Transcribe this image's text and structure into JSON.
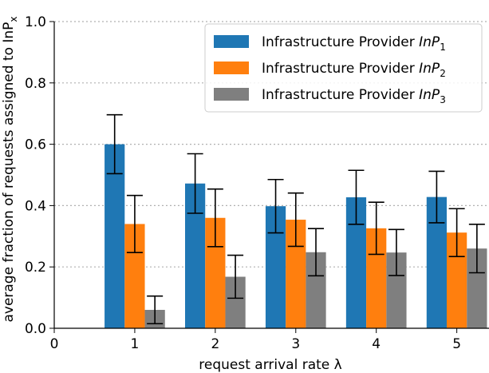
{
  "chart_data": {
    "type": "bar",
    "xlabel": "request arrival rate λ",
    "ylabel": "average fraction of requests assigned to InP",
    "ylabel_sub": "x",
    "categories": [
      "1",
      "2",
      "3",
      "4",
      "5"
    ],
    "x": [
      1,
      2,
      3,
      4,
      5
    ],
    "x_ticks": [
      "0",
      "1",
      "2",
      "3",
      "4",
      "5"
    ],
    "y_ticks": [
      "0.0",
      "0.2",
      "0.4",
      "0.6",
      "0.8",
      "1.0"
    ],
    "xlim": [
      0,
      5.4
    ],
    "ylim": [
      0,
      1.0
    ],
    "grid": "horizontal dotted",
    "legend_placement": "top-right",
    "series": [
      {
        "name": "Infrastructure Provider InP",
        "sub": "1",
        "color": "#1f77b4",
        "values": [
          0.6,
          0.472,
          0.398,
          0.427,
          0.428
        ],
        "errors": [
          0.096,
          0.097,
          0.087,
          0.088,
          0.084
        ]
      },
      {
        "name": "Infrastructure Provider InP",
        "sub": "2",
        "color": "#ff7f0e",
        "values": [
          0.34,
          0.36,
          0.354,
          0.326,
          0.312
        ],
        "errors": [
          0.093,
          0.094,
          0.087,
          0.085,
          0.078
        ]
      },
      {
        "name": "Infrastructure Provider InP",
        "sub": "3",
        "color": "#7f7f7f",
        "values": [
          0.06,
          0.168,
          0.248,
          0.247,
          0.26
        ],
        "errors": [
          0.045,
          0.07,
          0.077,
          0.075,
          0.079
        ]
      }
    ]
  }
}
